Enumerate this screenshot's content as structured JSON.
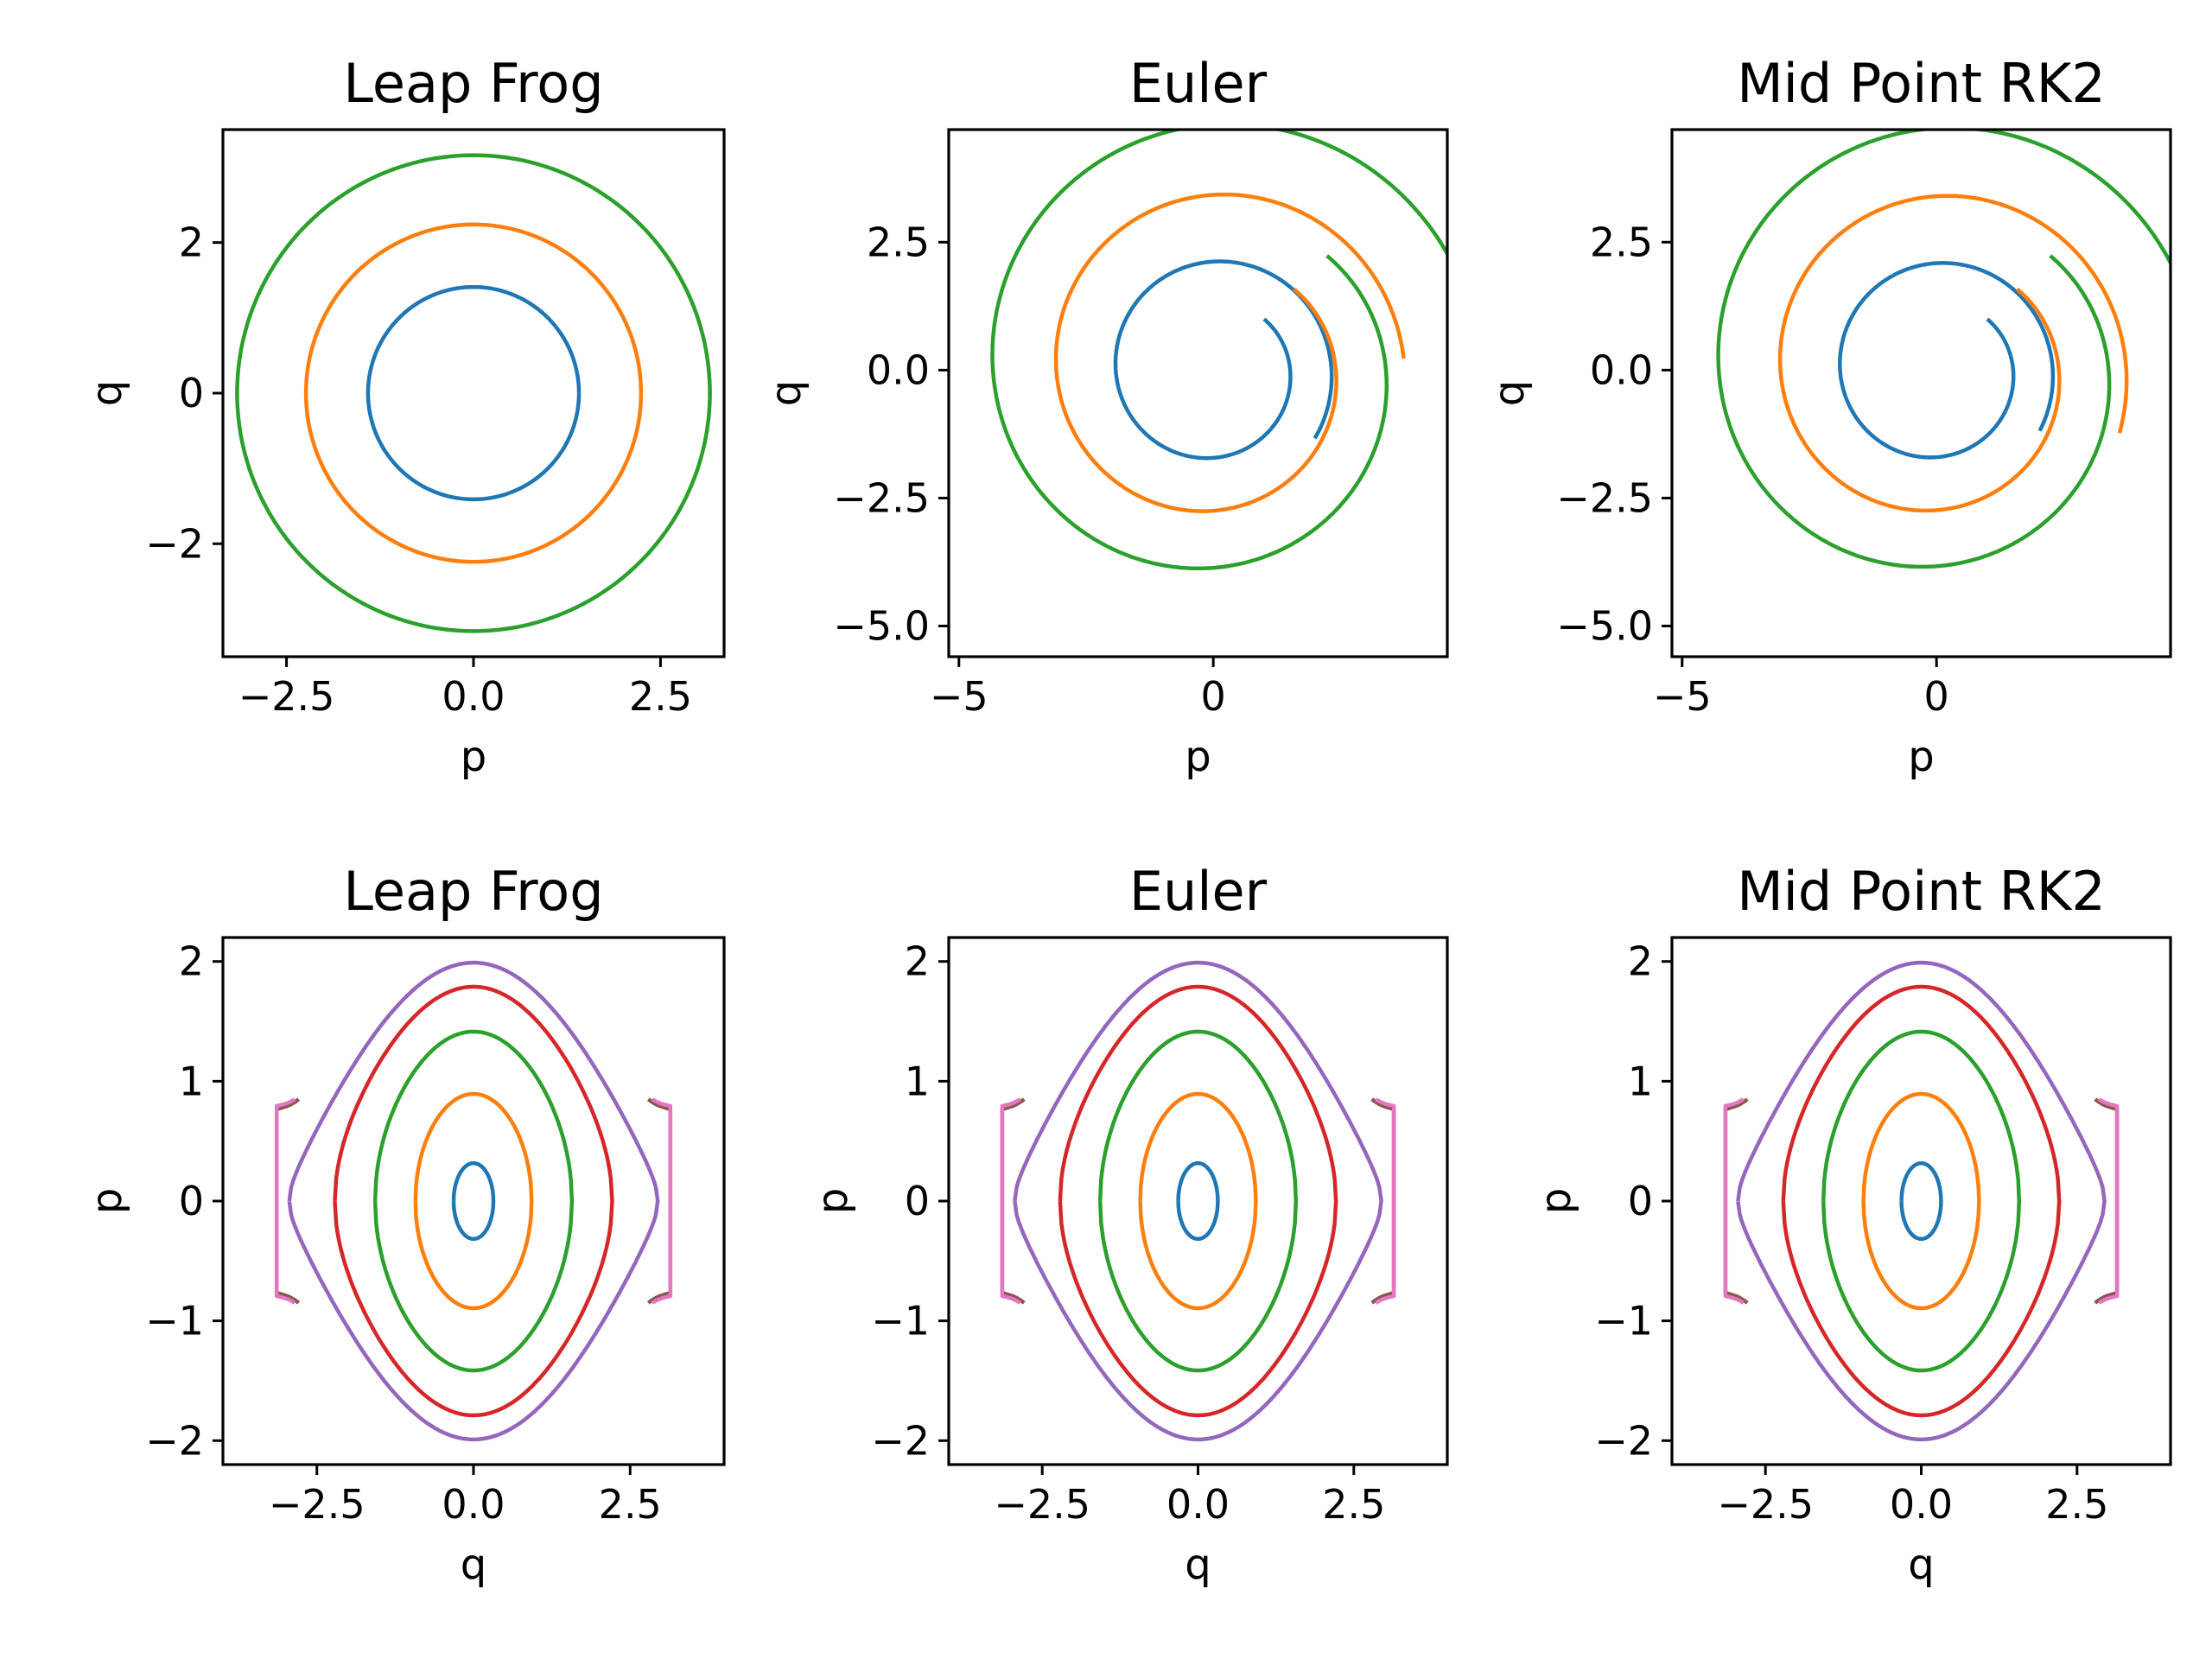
{
  "colors": [
    "#1f77b4",
    "#ff7f0e",
    "#2ca02c",
    "#d62728",
    "#9467bd",
    "#8c564b",
    "#e377c2"
  ],
  "chart_data": [
    {
      "type": "line",
      "title": "Leap Frog",
      "xlabel": "p",
      "ylabel": "q",
      "xlim": [
        -3.35,
        3.35
      ],
      "ylim": [
        -3.5,
        3.5
      ],
      "xticks": [
        {
          "v": -2.5,
          "label": "−2.5"
        },
        {
          "v": 0,
          "label": "0.0"
        },
        {
          "v": 2.5,
          "label": "2.5"
        }
      ],
      "yticks": [
        {
          "v": -2,
          "label": "−2"
        },
        {
          "v": 0,
          "label": "0"
        },
        {
          "v": 2,
          "label": "2"
        }
      ],
      "grid": false,
      "legend": "none",
      "series": [
        {
          "kind": "circle",
          "radius": 1.41
        },
        {
          "kind": "circle",
          "radius": 2.24
        },
        {
          "kind": "circle",
          "radius": 3.16
        }
      ]
    },
    {
      "type": "line",
      "title": "Euler",
      "xlabel": "p",
      "ylabel": "q",
      "xlim": [
        -5.2,
        4.6
      ],
      "ylim": [
        -5.6,
        4.7
      ],
      "xticks": [
        {
          "v": -5,
          "label": "−5"
        },
        {
          "v": 0,
          "label": "0"
        }
      ],
      "yticks": [
        {
          "v": -5,
          "label": "−5.0"
        },
        {
          "v": -2.5,
          "label": "−2.5"
        },
        {
          "v": 0,
          "label": "0.0"
        },
        {
          "v": 2.5,
          "label": "2.5"
        }
      ],
      "grid": false,
      "legend": "none",
      "series": [
        {
          "kind": "spiral",
          "r0": 1.41,
          "r1": 2.4,
          "end_angle": -2.16
        },
        {
          "kind": "spiral",
          "r0": 2.24,
          "r1": 3.75,
          "end_angle": -1.51
        },
        {
          "kind": "spiral",
          "r0": 3.16,
          "r1": 5.2,
          "end_angle": -1.34
        }
      ]
    },
    {
      "type": "line",
      "title": "Mid Point RK2",
      "xlabel": "p",
      "ylabel": "q",
      "xlim": [
        -5.2,
        4.6
      ],
      "ylim": [
        -5.6,
        4.7
      ],
      "xticks": [
        {
          "v": -5,
          "label": "−5"
        },
        {
          "v": 0,
          "label": "0"
        }
      ],
      "yticks": [
        {
          "v": -5,
          "label": "−5.0"
        },
        {
          "v": -2.5,
          "label": "−2.5"
        },
        {
          "v": 0,
          "label": "0.0"
        },
        {
          "v": 2.5,
          "label": "2.5"
        }
      ],
      "grid": false,
      "legend": "none",
      "series": [
        {
          "kind": "spiral",
          "r0": 1.41,
          "r1": 2.35,
          "end_angle": -2.1
        },
        {
          "kind": "spiral",
          "r0": 2.24,
          "r1": 3.8,
          "end_angle": -1.9
        },
        {
          "kind": "spiral",
          "r0": 3.16,
          "r1": 5.2,
          "end_angle": -1.65
        }
      ]
    },
    {
      "type": "line",
      "title": "Leap Frog",
      "xlabel": "q",
      "ylabel": "p",
      "xlim": [
        -4.0,
        4.0
      ],
      "ylim": [
        -2.2,
        2.2
      ],
      "xticks": [
        {
          "v": -2.5,
          "label": "−2.5"
        },
        {
          "v": 0,
          "label": "0.0"
        },
        {
          "v": 2.5,
          "label": "2.5"
        }
      ],
      "yticks": [
        {
          "v": -2,
          "label": "−2"
        },
        {
          "v": -1,
          "label": "−1"
        },
        {
          "v": 0,
          "label": "0"
        },
        {
          "v": 1,
          "label": "1"
        },
        {
          "v": 2,
          "label": "2"
        }
      ],
      "grid": false,
      "legend": "none",
      "series": [
        {
          "kind": "pendulum",
          "energy": 0.05
        },
        {
          "kind": "pendulum",
          "energy": 0.4
        },
        {
          "kind": "pendulum",
          "energy": 1.0
        },
        {
          "kind": "pendulum",
          "energy": 1.6
        },
        {
          "kind": "pendulum",
          "energy": 1.98
        },
        {
          "kind": "separatrix_branch",
          "energy": 2.3
        },
        {
          "kind": "separatrix_branch",
          "energy": 2.32
        }
      ]
    },
    {
      "type": "line",
      "title": "Euler",
      "xlabel": "q",
      "ylabel": "p",
      "xlim": [
        -4.0,
        4.0
      ],
      "ylim": [
        -2.2,
        2.2
      ],
      "xticks": [
        {
          "v": -2.5,
          "label": "−2.5"
        },
        {
          "v": 0,
          "label": "0.0"
        },
        {
          "v": 2.5,
          "label": "2.5"
        }
      ],
      "yticks": [
        {
          "v": -2,
          "label": "−2"
        },
        {
          "v": -1,
          "label": "−1"
        },
        {
          "v": 0,
          "label": "0"
        },
        {
          "v": 1,
          "label": "1"
        },
        {
          "v": 2,
          "label": "2"
        }
      ],
      "grid": false,
      "legend": "none",
      "series": [
        {
          "kind": "pendulum",
          "energy": 0.05
        },
        {
          "kind": "pendulum",
          "energy": 0.4
        },
        {
          "kind": "pendulum",
          "energy": 1.0
        },
        {
          "kind": "pendulum",
          "energy": 1.6
        },
        {
          "kind": "pendulum",
          "energy": 1.98
        },
        {
          "kind": "separatrix_branch",
          "energy": 2.3
        },
        {
          "kind": "separatrix_branch",
          "energy": 2.32
        }
      ]
    },
    {
      "type": "line",
      "title": "Mid Point RK2",
      "xlabel": "q",
      "ylabel": "p",
      "xlim": [
        -4.0,
        4.0
      ],
      "ylim": [
        -2.2,
        2.2
      ],
      "xticks": [
        {
          "v": -2.5,
          "label": "−2.5"
        },
        {
          "v": 0,
          "label": "0.0"
        },
        {
          "v": 2.5,
          "label": "2.5"
        }
      ],
      "yticks": [
        {
          "v": -2,
          "label": "−2"
        },
        {
          "v": -1,
          "label": "−1"
        },
        {
          "v": 0,
          "label": "0"
        },
        {
          "v": 1,
          "label": "1"
        },
        {
          "v": 2,
          "label": "2"
        }
      ],
      "grid": false,
      "legend": "none",
      "series": [
        {
          "kind": "pendulum",
          "energy": 0.05
        },
        {
          "kind": "pendulum",
          "energy": 0.4
        },
        {
          "kind": "pendulum",
          "energy": 1.0
        },
        {
          "kind": "pendulum",
          "energy": 1.6
        },
        {
          "kind": "pendulum",
          "energy": 1.98
        },
        {
          "kind": "separatrix_branch",
          "energy": 2.3
        },
        {
          "kind": "separatrix_branch",
          "energy": 2.32
        }
      ]
    }
  ]
}
